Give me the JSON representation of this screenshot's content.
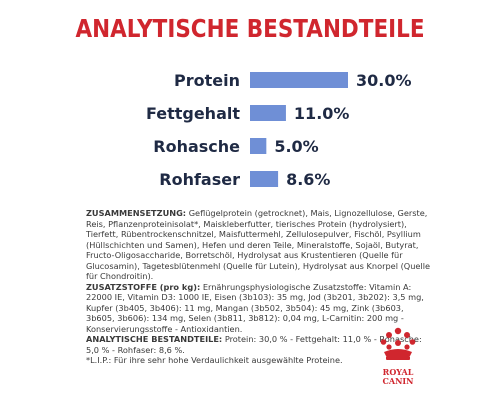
{
  "title": "ANALYTISCHE BESTANDTEILE",
  "chart_data": {
    "type": "bar",
    "orientation": "horizontal",
    "title": "ANALYTISCHE BESTANDTEILE",
    "categories": [
      "Protein",
      "Fettgehalt",
      "Rohasche",
      "Rohfaser"
    ],
    "values": [
      30.0,
      11.0,
      5.0,
      8.6
    ],
    "value_labels": [
      "30.0%",
      "11.0%",
      "5.0%",
      "8.6%"
    ],
    "unit": "%",
    "xlabel": "",
    "ylabel": "",
    "grid": false,
    "legend": "none",
    "bar_color": "#6f8fd6"
  },
  "composition": {
    "zusammensetzung_label": "ZUSAMMENSETZUNG:",
    "zusammensetzung_text": "Geflügelprotein (getrocknet), Mais, Lignozellulose, Gerste, Reis, Pflanzenproteinisolat*, Maiskleberfutter, tierisches Protein (hydrolysiert), Tierfett, Rübentrockenschnitzel, Maisfuttermehl, Zellulosepulver, Fischöl, Psyllium (Hüllschichten und Samen), Hefen und deren Teile, Mineralstoffe, Sojaöl, Butyrat, Fructo-Oligosaccharide, Borretschöl, Hydrolysat aus Krustentieren (Quelle für Glucosamin), Tagetesblütenmehl (Quelle für Lutein), Hydrolysat aus Knorpel (Quelle für Chondroitin).",
    "zusatzstoffe_label": "ZUSATZSTOFFE (pro kg):",
    "zusatzstoffe_text": "Ernährungsphysiologische Zusatzstoffe: Vitamin A: 22000 IE, Vitamin D3: 1000 IE, Eisen (3b103): 35 mg, Jod (3b201, 3b202): 3,5 mg, Kupfer (3b405, 3b406): 11 mg, Mangan (3b502, 3b504): 45 mg, Zink (3b603, 3b605, 3b606): 134 mg, Selen (3b811, 3b812): 0,04 mg, L-Carnitin: 200 mg - Konservierungsstoffe - Antioxidantien.",
    "analytische_label": "ANALYTISCHE BESTANDTEILE:",
    "analytische_text": "Protein: 30,0 % - Fettgehalt: 11,0 % - Rohasche: 5,0 % - Rohfaser: 8,6 %.",
    "lip_note": "*L.I.P.: Für ihre sehr hohe Verdaulichkeit ausgewählte Proteine."
  },
  "brand": {
    "line1": "ROYAL",
    "line2": "CANIN",
    "color": "#d0262e"
  }
}
